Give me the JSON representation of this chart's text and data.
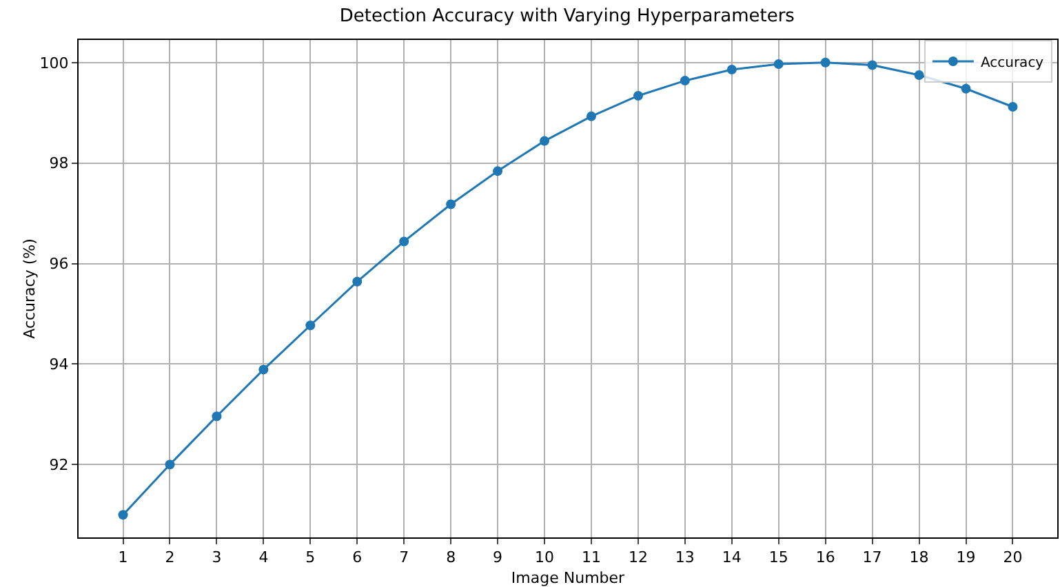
{
  "chart_data": {
    "type": "line",
    "title": "Detection Accuracy with Varying Hyperparameters",
    "xlabel": "Image Number",
    "ylabel": "Accuracy (%)",
    "x": [
      1,
      2,
      3,
      4,
      5,
      6,
      7,
      8,
      9,
      10,
      11,
      12,
      13,
      14,
      15,
      16,
      17,
      18,
      19,
      20
    ],
    "series": [
      {
        "name": "Accuracy",
        "color": "#1f77b4",
        "values": [
          91.0,
          92.0,
          92.96,
          93.89,
          94.77,
          95.64,
          96.44,
          97.18,
          97.84,
          98.44,
          98.93,
          99.34,
          99.64,
          99.86,
          99.97,
          100.0,
          99.95,
          99.75,
          99.48,
          99.12
        ]
      }
    ],
    "xlim": [
      0.05,
      20.95
    ],
    "xticks": [
      1,
      2,
      3,
      4,
      5,
      6,
      7,
      8,
      9,
      10,
      11,
      12,
      13,
      14,
      15,
      16,
      17,
      18,
      19,
      20
    ],
    "ylim": [
      90.55,
      100.45
    ],
    "yticks": [
      92,
      94,
      96,
      98,
      100
    ],
    "grid": true,
    "legend": "top right",
    "marker": "circle",
    "line_style": "solid"
  }
}
